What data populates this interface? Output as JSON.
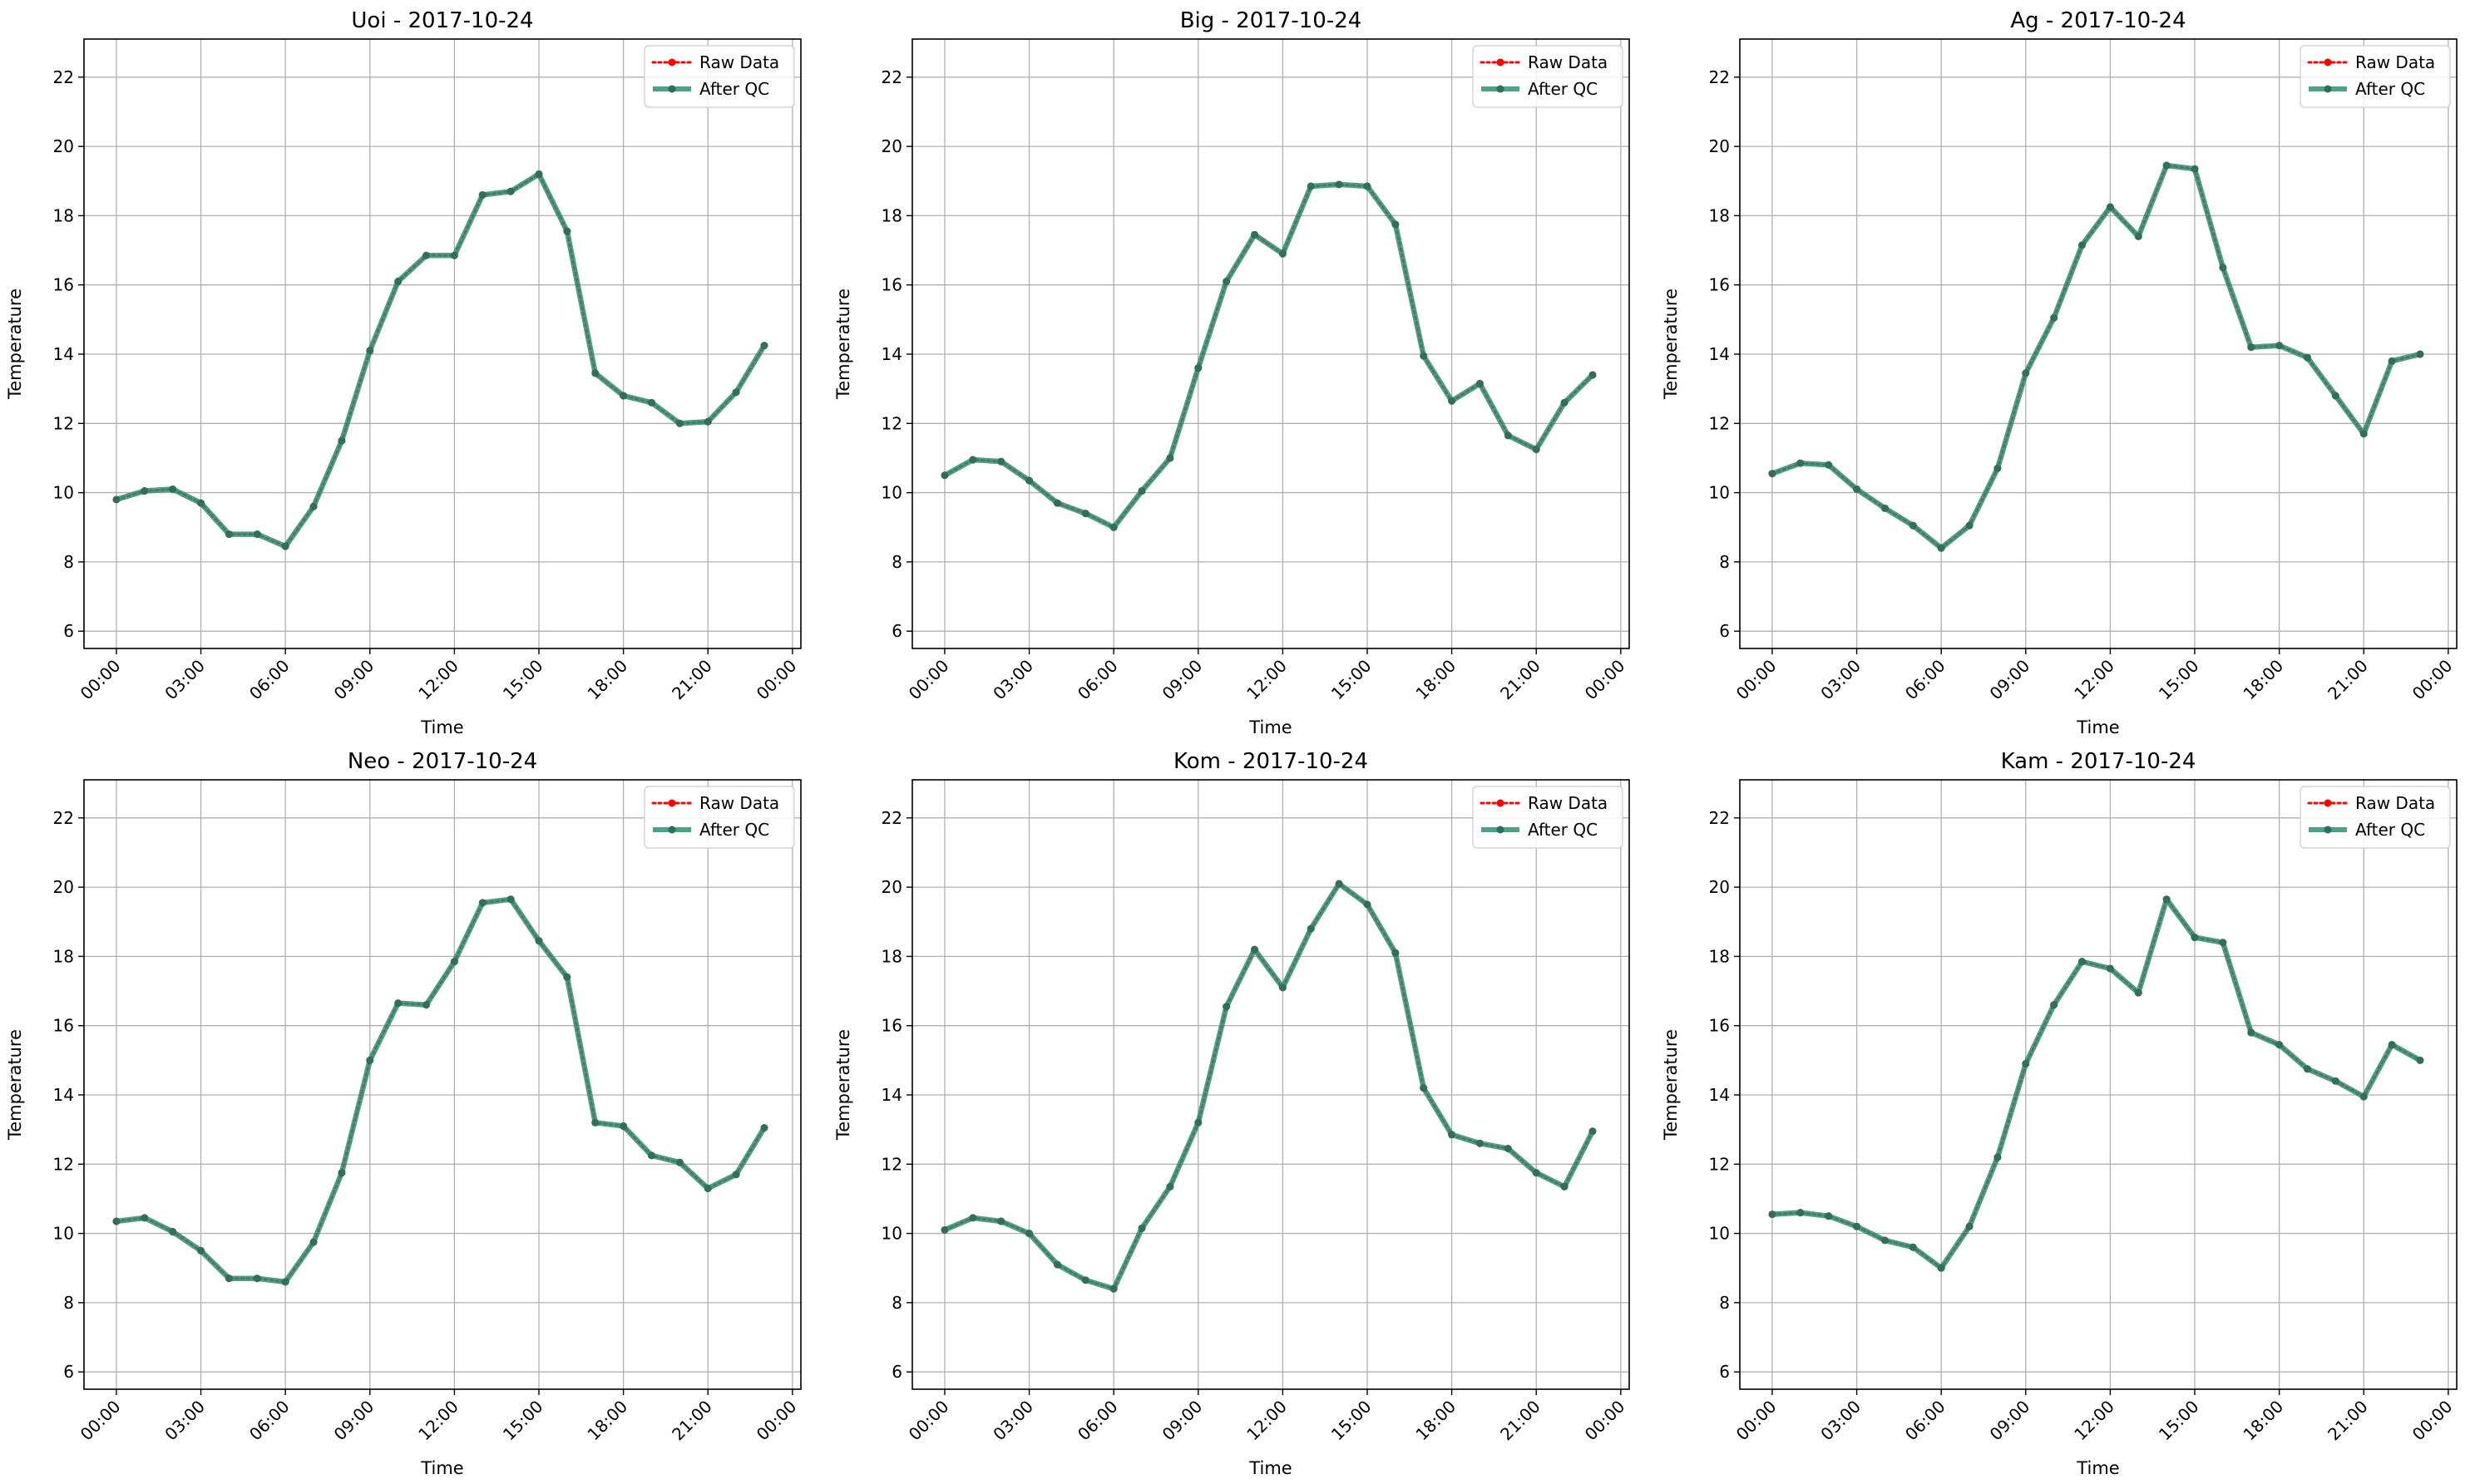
{
  "figure": {
    "legend_labels": {
      "raw": "Raw Data",
      "qc": "After QC"
    },
    "colors": {
      "raw": "#ff0000",
      "qc": "#2f8f73",
      "qc_marker": "#2e6e5a",
      "grid": "#b0b0b0"
    }
  },
  "chart_data": [
    {
      "type": "line",
      "title": "Uoi - 2017-10-24",
      "xlabel": "Time",
      "ylabel": "Temperature",
      "xticks": [
        "00:00",
        "03:00",
        "06:00",
        "09:00",
        "12:00",
        "15:00",
        "18:00",
        "21:00",
        "00:00"
      ],
      "yticks": [
        "6",
        "8",
        "10",
        "12",
        "14",
        "16",
        "18",
        "20",
        "22"
      ],
      "ylim": [
        5.5,
        23.1
      ],
      "grid": true,
      "legend": "top-right",
      "x_hours": [
        0,
        1,
        2,
        3,
        4,
        5,
        6,
        7,
        8,
        9,
        10,
        11,
        12,
        13,
        14,
        15,
        16,
        17,
        18,
        19,
        20,
        21,
        22,
        23
      ],
      "series": [
        {
          "name": "Raw Data",
          "values": [
            9.8,
            10.05,
            10.1,
            9.7,
            8.8,
            8.8,
            8.45,
            9.6,
            11.5,
            14.1,
            16.1,
            16.85,
            16.85,
            18.6,
            18.7,
            19.2,
            17.55,
            13.45,
            12.8,
            12.6,
            12.0,
            12.05,
            12.9,
            14.25
          ]
        },
        {
          "name": "After QC",
          "values": [
            9.8,
            10.05,
            10.1,
            9.7,
            8.8,
            8.8,
            8.45,
            9.6,
            11.5,
            14.1,
            16.1,
            16.85,
            16.85,
            18.6,
            18.7,
            19.2,
            17.55,
            13.45,
            12.8,
            12.6,
            12.0,
            12.05,
            12.9,
            14.25
          ]
        }
      ]
    },
    {
      "type": "line",
      "title": "Big - 2017-10-24",
      "xlabel": "Time",
      "ylabel": "Temperature",
      "xticks": [
        "00:00",
        "03:00",
        "06:00",
        "09:00",
        "12:00",
        "15:00",
        "18:00",
        "21:00",
        "00:00"
      ],
      "yticks": [
        "6",
        "8",
        "10",
        "12",
        "14",
        "16",
        "18",
        "20",
        "22"
      ],
      "ylim": [
        5.5,
        23.1
      ],
      "grid": true,
      "legend": "top-right",
      "x_hours": [
        0,
        1,
        2,
        3,
        4,
        5,
        6,
        7,
        8,
        9,
        10,
        11,
        12,
        13,
        14,
        15,
        16,
        17,
        18,
        19,
        20,
        21,
        22,
        23
      ],
      "series": [
        {
          "name": "Raw Data",
          "values": [
            10.5,
            10.95,
            10.9,
            10.35,
            9.7,
            9.4,
            9.0,
            10.05,
            11.0,
            13.6,
            16.1,
            17.45,
            16.9,
            18.85,
            18.9,
            18.85,
            17.75,
            13.95,
            12.65,
            13.15,
            11.65,
            11.25,
            12.6,
            13.4
          ]
        },
        {
          "name": "After QC",
          "values": [
            10.5,
            10.95,
            10.9,
            10.35,
            9.7,
            9.4,
            9.0,
            10.05,
            11.0,
            13.6,
            16.1,
            17.45,
            16.9,
            18.85,
            18.9,
            18.85,
            17.75,
            13.95,
            12.65,
            13.15,
            11.65,
            11.25,
            12.6,
            13.4
          ]
        }
      ]
    },
    {
      "type": "line",
      "title": "Ag - 2017-10-24",
      "xlabel": "Time",
      "ylabel": "Temperature",
      "xticks": [
        "00:00",
        "03:00",
        "06:00",
        "09:00",
        "12:00",
        "15:00",
        "18:00",
        "21:00",
        "00:00"
      ],
      "yticks": [
        "6",
        "8",
        "10",
        "12",
        "14",
        "16",
        "18",
        "20",
        "22"
      ],
      "ylim": [
        5.5,
        23.1
      ],
      "grid": true,
      "legend": "top-right",
      "x_hours": [
        0,
        1,
        2,
        3,
        4,
        5,
        6,
        7,
        8,
        9,
        10,
        11,
        12,
        13,
        14,
        15,
        16,
        17,
        18,
        19,
        20,
        21,
        22,
        23
      ],
      "series": [
        {
          "name": "Raw Data",
          "values": [
            10.55,
            10.85,
            10.8,
            10.1,
            9.55,
            9.05,
            8.4,
            9.05,
            10.7,
            13.45,
            15.05,
            17.15,
            18.25,
            17.4,
            19.45,
            19.35,
            16.5,
            14.2,
            14.25,
            13.9,
            12.8,
            11.7,
            13.8,
            14.0
          ]
        },
        {
          "name": "After QC",
          "values": [
            10.55,
            10.85,
            10.8,
            10.1,
            9.55,
            9.05,
            8.4,
            9.05,
            10.7,
            13.45,
            15.05,
            17.15,
            18.25,
            17.4,
            19.45,
            19.35,
            16.5,
            14.2,
            14.25,
            13.9,
            12.8,
            11.7,
            13.8,
            14.0
          ]
        }
      ]
    },
    {
      "type": "line",
      "title": "Neo - 2017-10-24",
      "xlabel": "Time",
      "ylabel": "Temperature",
      "xticks": [
        "00:00",
        "03:00",
        "06:00",
        "09:00",
        "12:00",
        "15:00",
        "18:00",
        "21:00",
        "00:00"
      ],
      "yticks": [
        "6",
        "8",
        "10",
        "12",
        "14",
        "16",
        "18",
        "20",
        "22"
      ],
      "ylim": [
        5.5,
        23.1
      ],
      "grid": true,
      "legend": "top-right",
      "x_hours": [
        0,
        1,
        2,
        3,
        4,
        5,
        6,
        7,
        8,
        9,
        10,
        11,
        12,
        13,
        14,
        15,
        16,
        17,
        18,
        19,
        20,
        21,
        22,
        23
      ],
      "series": [
        {
          "name": "Raw Data",
          "values": [
            10.35,
            10.45,
            10.05,
            9.5,
            8.7,
            8.7,
            8.6,
            9.75,
            11.75,
            15.0,
            16.65,
            16.6,
            17.85,
            19.55,
            19.65,
            18.45,
            17.4,
            13.2,
            13.1,
            12.25,
            12.05,
            11.3,
            11.7,
            13.05
          ]
        },
        {
          "name": "After QC",
          "values": [
            10.35,
            10.45,
            10.05,
            9.5,
            8.7,
            8.7,
            8.6,
            9.75,
            11.75,
            15.0,
            16.65,
            16.6,
            17.85,
            19.55,
            19.65,
            18.45,
            17.4,
            13.2,
            13.1,
            12.25,
            12.05,
            11.3,
            11.7,
            13.05
          ]
        }
      ]
    },
    {
      "type": "line",
      "title": "Kom - 2017-10-24",
      "xlabel": "Time",
      "ylabel": "Temperature",
      "xticks": [
        "00:00",
        "03:00",
        "06:00",
        "09:00",
        "12:00",
        "15:00",
        "18:00",
        "21:00",
        "00:00"
      ],
      "yticks": [
        "6",
        "8",
        "10",
        "12",
        "14",
        "16",
        "18",
        "20",
        "22"
      ],
      "ylim": [
        5.5,
        23.1
      ],
      "grid": true,
      "legend": "top-right",
      "x_hours": [
        0,
        1,
        2,
        3,
        4,
        5,
        6,
        7,
        8,
        9,
        10,
        11,
        12,
        13,
        14,
        15,
        16,
        17,
        18,
        19,
        20,
        21,
        22,
        23
      ],
      "series": [
        {
          "name": "Raw Data",
          "values": [
            10.1,
            10.45,
            10.35,
            10.0,
            9.1,
            8.65,
            8.4,
            10.15,
            11.35,
            13.2,
            16.55,
            18.2,
            17.1,
            18.8,
            20.1,
            19.5,
            18.1,
            14.2,
            12.85,
            12.6,
            12.45,
            11.75,
            11.35,
            12.95
          ]
        },
        {
          "name": "After QC",
          "values": [
            10.1,
            10.45,
            10.35,
            10.0,
            9.1,
            8.65,
            8.4,
            10.15,
            11.35,
            13.2,
            16.55,
            18.2,
            17.1,
            18.8,
            20.1,
            19.5,
            18.1,
            14.2,
            12.85,
            12.6,
            12.45,
            11.75,
            11.35,
            12.95
          ]
        }
      ]
    },
    {
      "type": "line",
      "title": "Kam - 2017-10-24",
      "xlabel": "Time",
      "ylabel": "Temperature",
      "xticks": [
        "00:00",
        "03:00",
        "06:00",
        "09:00",
        "12:00",
        "15:00",
        "18:00",
        "21:00",
        "00:00"
      ],
      "yticks": [
        "6",
        "8",
        "10",
        "12",
        "14",
        "16",
        "18",
        "20",
        "22"
      ],
      "ylim": [
        5.5,
        23.1
      ],
      "grid": true,
      "legend": "top-right",
      "x_hours": [
        0,
        1,
        2,
        3,
        4,
        5,
        6,
        7,
        8,
        9,
        10,
        11,
        12,
        13,
        14,
        15,
        16,
        17,
        18,
        19,
        20,
        21,
        22,
        23
      ],
      "series": [
        {
          "name": "Raw Data",
          "values": [
            10.55,
            10.6,
            10.5,
            10.2,
            9.8,
            9.6,
            9.0,
            10.2,
            12.2,
            14.9,
            16.6,
            17.85,
            17.65,
            16.95,
            19.65,
            18.55,
            18.4,
            15.8,
            15.45,
            14.75,
            14.4,
            13.95,
            15.45,
            15.0
          ]
        },
        {
          "name": "After QC",
          "values": [
            10.55,
            10.6,
            10.5,
            10.2,
            9.8,
            9.6,
            9.0,
            10.2,
            12.2,
            14.9,
            16.6,
            17.85,
            17.65,
            16.95,
            19.65,
            18.55,
            18.4,
            15.8,
            15.45,
            14.75,
            14.4,
            13.95,
            15.45,
            15.0
          ]
        }
      ]
    }
  ]
}
